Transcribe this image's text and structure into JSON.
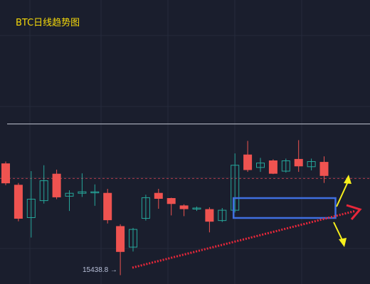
{
  "chart_data": {
    "type": "candlestick",
    "title": "BTC日线趋势图",
    "low_label": "15438.8 →",
    "colors": {
      "background": "#1a1e2d",
      "grid": "#252a3b",
      "up": "#26a69a",
      "down": "#ef5350",
      "resistance": "#b0b4c0",
      "dashed": "#d94452",
      "trend_arrow": "#e8273a",
      "box": "#3f6fe0",
      "breakout_arrows": "#f7f01c",
      "title": "#f5d90a"
    },
    "candles": [
      {
        "open": 16980,
        "close": 16720,
        "high": 17010,
        "low": 16690
      },
      {
        "open": 16690,
        "close": 16240,
        "high": 16720,
        "low": 16200
      },
      {
        "open": 16250,
        "close": 16500,
        "high": 16880,
        "low": 15980
      },
      {
        "open": 16480,
        "close": 16750,
        "high": 16960,
        "low": 16440
      },
      {
        "open": 16840,
        "close": 16530,
        "high": 16900,
        "low": 16500
      },
      {
        "open": 16540,
        "close": 16580,
        "high": 16620,
        "low": 16340
      },
      {
        "open": 16580,
        "close": 16600,
        "high": 16850,
        "low": 16530
      },
      {
        "open": 16590,
        "close": 16600,
        "high": 16700,
        "low": 16410
      },
      {
        "open": 16580,
        "close": 16220,
        "high": 16640,
        "low": 16170
      },
      {
        "open": 16130,
        "close": 15790,
        "high": 16160,
        "low": 15470
      },
      {
        "open": 15850,
        "close": 16090,
        "high": 16110,
        "low": 15790
      },
      {
        "open": 16240,
        "close": 16520,
        "high": 16560,
        "low": 16210
      },
      {
        "open": 16580,
        "close": 16510,
        "high": 16640,
        "low": 16370
      },
      {
        "open": 16510,
        "close": 16440,
        "high": 16520,
        "low": 16280
      },
      {
        "open": 16410,
        "close": 16370,
        "high": 16430,
        "low": 16270
      },
      {
        "open": 16370,
        "close": 16380,
        "high": 16400,
        "low": 16340
      },
      {
        "open": 16360,
        "close": 16200,
        "high": 16390,
        "low": 16050
      },
      {
        "open": 16210,
        "close": 16350,
        "high": 16380,
        "low": 16190
      },
      {
        "open": 16350,
        "close": 16960,
        "high": 17120,
        "low": 16320
      },
      {
        "open": 17100,
        "close": 16900,
        "high": 17290,
        "low": 16870
      },
      {
        "open": 16930,
        "close": 16990,
        "high": 17060,
        "low": 16870
      },
      {
        "open": 17020,
        "close": 16850,
        "high": 17040,
        "low": 16840
      },
      {
        "open": 16880,
        "close": 17020,
        "high": 17050,
        "low": 16860
      },
      {
        "open": 17040,
        "close": 16950,
        "high": 17300,
        "low": 16870
      },
      {
        "open": 16940,
        "close": 17010,
        "high": 17050,
        "low": 16890
      },
      {
        "open": 17000,
        "close": 16820,
        "high": 17080,
        "low": 16720
      }
    ],
    "ylim": [
      15350,
      19200
    ],
    "resistance_level": 17520,
    "dashed_level": 16780
  }
}
